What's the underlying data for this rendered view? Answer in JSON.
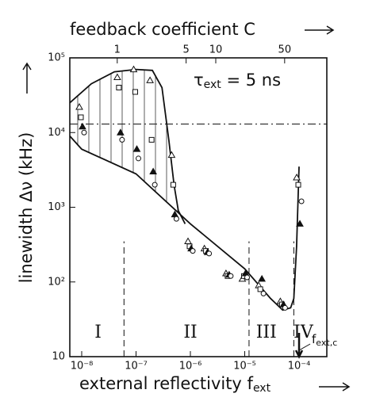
{
  "chart_data": {
    "type": "scatter",
    "xlabel": "external reflectivity f",
    "xlabel_subscript": "ext",
    "ylabel": "linewidth Δν (kHz)",
    "x2label": "feedback coefficient C",
    "annotation": {
      "text": "τ",
      "subscript": "ext",
      "rest": " = 5 ns"
    },
    "critical_label": {
      "text": "f",
      "subscript": "ext,c",
      "x": 0.0001
    },
    "regions": [
      {
        "label": "I",
        "x": 2e-08
      },
      {
        "label": "II",
        "x": 1e-06
      },
      {
        "label": "III",
        "x": 2.5e-05
      },
      {
        "label": "IV",
        "x": 0.00012
      }
    ],
    "xscale": "log",
    "yscale": "log",
    "xlim": [
      6.04e-09,
      0.000324
    ],
    "xticks": [
      {
        "value": 1e-08,
        "label": "10⁻⁸"
      },
      {
        "value": 1e-07,
        "label": "10⁻⁷"
      },
      {
        "value": 1e-06,
        "label": "10⁻⁶"
      },
      {
        "value": 1e-05,
        "label": "10⁻⁵"
      },
      {
        "value": 0.0001,
        "label": "10⁻⁴"
      }
    ],
    "x2lim": [
      0.33,
      134
    ],
    "x2ticks": [
      1,
      5,
      10,
      50
    ],
    "ylim": [
      10,
      100000
    ],
    "yticks": [
      10,
      {
        "value": 100,
        "label": "10²"
      },
      {
        "value": 1000,
        "label": "10³"
      },
      {
        "value": 10000,
        "label": "10⁴"
      },
      {
        "value": 100000,
        "label": "10⁵"
      }
    ],
    "hline": 13000,
    "vlines": [
      6e-08,
      1.2e-05,
      8e-05
    ],
    "curves": [
      {
        "x": [
          6.04e-09,
          1.5e-08,
          4e-08,
          1e-07,
          2e-07,
          3e-07,
          4e-07,
          5e-07,
          6e-07,
          8e-07
        ],
        "values": [
          25000,
          45000,
          65000,
          70000,
          68000,
          40000,
          8000,
          2000,
          900,
          600
        ]
      },
      {
        "x": [
          6.04e-09,
          1e-08,
          1e-07,
          1e-06,
          1e-05,
          3e-05,
          5e-05,
          7e-05,
          8e-05,
          9e-05,
          0.0001
        ],
        "values": [
          9000,
          6000,
          2800,
          600,
          150,
          60,
          42,
          45,
          60,
          300,
          3500
        ]
      }
    ],
    "series": [
      {
        "marker": "triangle",
        "filled": false,
        "x": [
          1e-08,
          5e-08,
          1e-07,
          2e-07,
          5e-07,
          1e-06,
          2e-06,
          5e-06,
          1e-05,
          2e-05,
          5e-05,
          0.0001
        ],
        "values": [
          22000,
          55000,
          70000,
          50000,
          5000,
          350,
          280,
          130,
          110,
          90,
          55,
          2500
        ]
      },
      {
        "marker": "square",
        "filled": false,
        "x": [
          1e-08,
          5e-08,
          1e-07,
          2e-07,
          5e-07,
          1e-06,
          2e-06,
          5e-06,
          1e-05,
          2e-05,
          5e-05,
          0.0001
        ],
        "values": [
          16000,
          40000,
          35000,
          8000,
          2000,
          300,
          260,
          120,
          120,
          80,
          50,
          2000
        ]
      },
      {
        "marker": "triangle",
        "filled": true,
        "x": [
          1e-08,
          5e-08,
          1e-07,
          2e-07,
          5e-07,
          1e-06,
          2e-06,
          5e-06,
          1e-05,
          2e-05,
          5e-05,
          0.0001
        ],
        "values": [
          12000,
          10000,
          6000,
          3000,
          800,
          280,
          250,
          125,
          130,
          110,
          50,
          600
        ]
      },
      {
        "marker": "circle",
        "filled": false,
        "x": [
          1e-08,
          5e-08,
          1e-07,
          2e-07,
          5e-07,
          1e-06,
          2e-06,
          5e-06,
          1e-05,
          2e-05,
          5e-05,
          0.0001
        ],
        "values": [
          10000,
          8000,
          4500,
          2000,
          700,
          260,
          240,
          120,
          115,
          70,
          45,
          1200
        ]
      }
    ]
  }
}
